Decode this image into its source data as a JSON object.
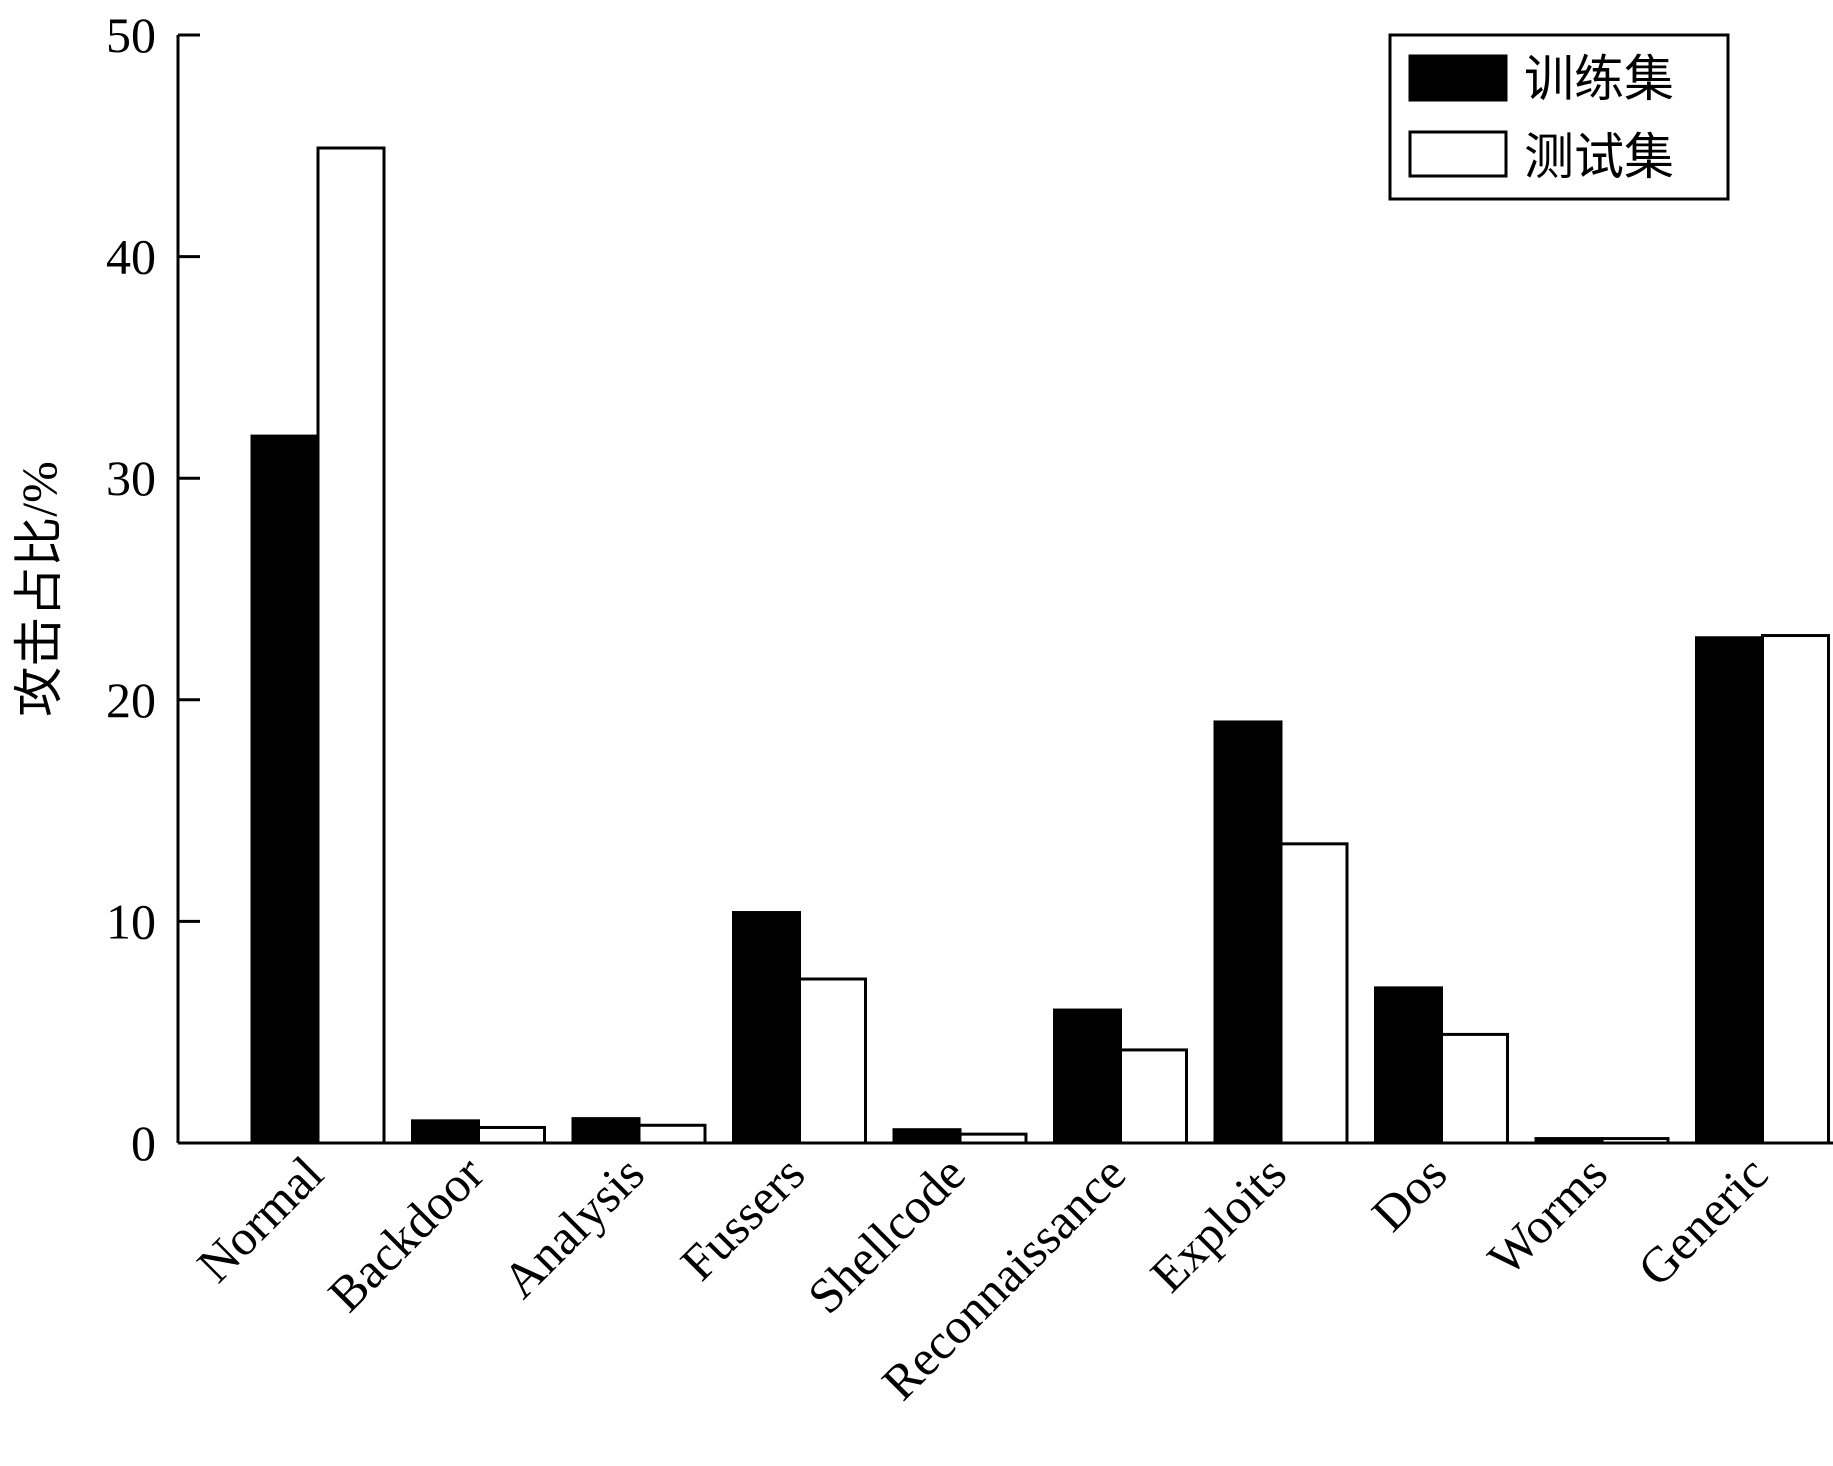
{
  "chart_data": {
    "type": "bar",
    "title": "",
    "xlabel": "",
    "ylabel": "攻击占比/%",
    "ylim": [
      0,
      50
    ],
    "yticks": [
      0,
      10,
      20,
      30,
      40,
      50
    ],
    "grid": false,
    "legend_position": "top-right",
    "categories": [
      "Normal",
      "Backdoor",
      "Analysis",
      "Fussers",
      "Shellcode",
      "Reconnaissance",
      "Exploits",
      "Dos",
      "Worms",
      "Generic"
    ],
    "series": [
      {
        "name": "训练集",
        "color": "#000000",
        "values": [
          31.9,
          1.0,
          1.1,
          10.4,
          0.6,
          6.0,
          19.0,
          7.0,
          0.2,
          22.8
        ]
      },
      {
        "name": "测试集",
        "color": "#ffffff",
        "values": [
          44.9,
          0.7,
          0.8,
          7.4,
          0.4,
          4.2,
          13.5,
          4.9,
          0.2,
          22.9
        ]
      }
    ]
  }
}
